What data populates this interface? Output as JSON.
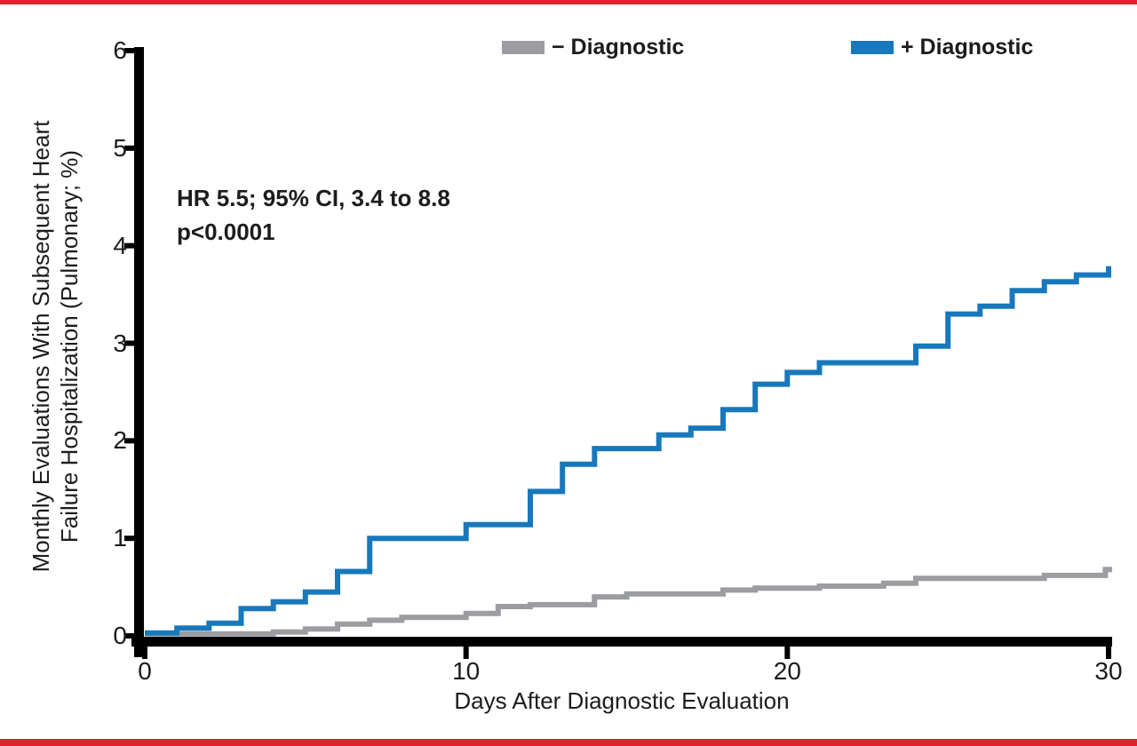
{
  "page": {
    "background": "#ffffff",
    "border_color": "#E2202C",
    "axis_color": "#000000",
    "text_color": "#1c1c1e"
  },
  "chart_data": {
    "type": "line",
    "subtype": "step-post-cumulative-incidence",
    "title": "",
    "xlabel": "Days After Diagnostic Evaluation",
    "ylabel_line1": "Monthly Evaluations With Subsequent Heart",
    "ylabel_line2": "Failure Hospitalization (Pulmonary; %)",
    "xlim": [
      0,
      30
    ],
    "ylim": [
      0,
      6
    ],
    "x_ticks": [
      0,
      10,
      20,
      30
    ],
    "y_ticks": [
      0,
      1,
      2,
      3,
      4,
      5,
      6
    ],
    "grid": "off",
    "legend_position": "top",
    "annotation": [
      "HR 5.5; 95% CI, 3.4 to 8.8",
      "p<0.0001"
    ],
    "series": [
      {
        "name": "− Diagnostic",
        "color": "#9B9DA0",
        "points": [
          [
            0,
            0.02
          ],
          [
            4,
            0.04
          ],
          [
            5,
            0.07
          ],
          [
            6,
            0.12
          ],
          [
            7,
            0.16
          ],
          [
            8,
            0.19
          ],
          [
            10,
            0.23
          ],
          [
            11,
            0.3
          ],
          [
            12,
            0.32
          ],
          [
            14,
            0.4
          ],
          [
            15,
            0.43
          ],
          [
            18,
            0.47
          ],
          [
            19,
            0.49
          ],
          [
            21,
            0.51
          ],
          [
            23,
            0.54
          ],
          [
            24,
            0.59
          ],
          [
            28,
            0.62
          ],
          [
            29.9,
            0.68
          ]
        ]
      },
      {
        "name": "+ Diagnostic",
        "color": "#1878BB",
        "points": [
          [
            0,
            0.03
          ],
          [
            1,
            0.08
          ],
          [
            2,
            0.13
          ],
          [
            3,
            0.28
          ],
          [
            4,
            0.35
          ],
          [
            5,
            0.45
          ],
          [
            6,
            0.66
          ],
          [
            7,
            1.0
          ],
          [
            10,
            1.14
          ],
          [
            12,
            1.48
          ],
          [
            13,
            1.76
          ],
          [
            14,
            1.92
          ],
          [
            16,
            2.06
          ],
          [
            17,
            2.13
          ],
          [
            18,
            2.32
          ],
          [
            19,
            2.58
          ],
          [
            20,
            2.7
          ],
          [
            21,
            2.8
          ],
          [
            24,
            2.97
          ],
          [
            25,
            3.3
          ],
          [
            26,
            3.38
          ],
          [
            27,
            3.54
          ],
          [
            28,
            3.63
          ],
          [
            29,
            3.7
          ],
          [
            30,
            3.79
          ]
        ]
      }
    ]
  }
}
